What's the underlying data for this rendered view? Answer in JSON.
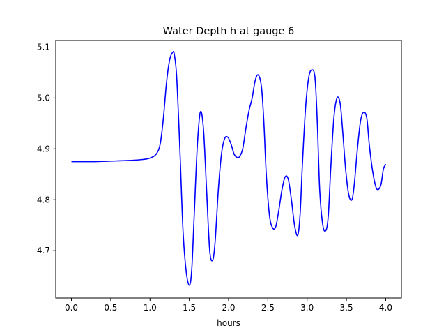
{
  "chart_data": {
    "type": "line",
    "title": "Water Depth h at gauge 6",
    "xlabel": "hours",
    "ylabel": "",
    "xlim": [
      -0.2,
      4.2
    ],
    "ylim": [
      4.607,
      5.113
    ],
    "xticks": [
      0.0,
      0.5,
      1.0,
      1.5,
      2.0,
      2.5,
      3.0,
      3.5,
      4.0
    ],
    "xtick_labels": [
      "0.0",
      "0.5",
      "1.0",
      "1.5",
      "2.0",
      "2.5",
      "3.0",
      "3.5",
      "4.0"
    ],
    "yticks": [
      4.7,
      4.8,
      4.9,
      5.0,
      5.1
    ],
    "ytick_labels": [
      "4.7",
      "4.8",
      "4.9",
      "5.0",
      "5.1"
    ],
    "grid": false,
    "legend": "none",
    "series_color": "#0000ff",
    "series": [
      {
        "x": [
          0.0,
          0.3,
          0.5,
          0.7,
          0.9,
          1.0,
          1.08,
          1.13,
          1.17,
          1.21,
          1.25,
          1.29,
          1.31,
          1.34,
          1.38,
          1.42,
          1.46,
          1.5,
          1.53,
          1.56,
          1.6,
          1.64,
          1.68,
          1.72,
          1.76,
          1.8,
          1.83,
          1.87,
          1.91,
          1.95,
          1.99,
          2.03,
          2.07,
          2.11,
          2.14,
          2.18,
          2.22,
          2.26,
          2.3,
          2.34,
          2.38,
          2.42,
          2.45,
          2.48,
          2.52,
          2.56,
          2.6,
          2.64,
          2.68,
          2.72,
          2.76,
          2.8,
          2.84,
          2.88,
          2.91,
          2.94,
          2.98,
          3.02,
          3.06,
          3.1,
          3.13,
          3.16,
          3.2,
          3.24,
          3.27,
          3.3,
          3.34,
          3.38,
          3.42,
          3.45,
          3.49,
          3.53,
          3.57,
          3.6,
          3.64,
          3.68,
          3.72,
          3.76,
          3.79,
          3.83,
          3.87,
          3.9,
          3.94,
          3.97,
          4.0
        ],
        "y": [
          4.875,
          4.875,
          4.876,
          4.877,
          4.879,
          4.882,
          4.89,
          4.91,
          4.96,
          5.03,
          5.075,
          5.09,
          5.085,
          5.04,
          4.9,
          4.74,
          4.66,
          4.632,
          4.66,
          4.76,
          4.9,
          4.972,
          4.94,
          4.82,
          4.7,
          4.682,
          4.72,
          4.82,
          4.89,
          4.92,
          4.923,
          4.91,
          4.89,
          4.883,
          4.885,
          4.9,
          4.94,
          4.975,
          5.0,
          5.035,
          5.045,
          5.02,
          4.95,
          4.85,
          4.77,
          4.745,
          4.747,
          4.78,
          4.82,
          4.845,
          4.84,
          4.8,
          4.75,
          4.73,
          4.77,
          4.87,
          4.98,
          5.04,
          5.055,
          5.04,
          4.95,
          4.82,
          4.75,
          4.74,
          4.77,
          4.86,
          4.96,
          5.0,
          4.99,
          4.94,
          4.86,
          4.81,
          4.8,
          4.83,
          4.9,
          4.955,
          4.972,
          4.96,
          4.91,
          4.86,
          4.828,
          4.82,
          4.83,
          4.86,
          4.87
        ]
      }
    ]
  }
}
